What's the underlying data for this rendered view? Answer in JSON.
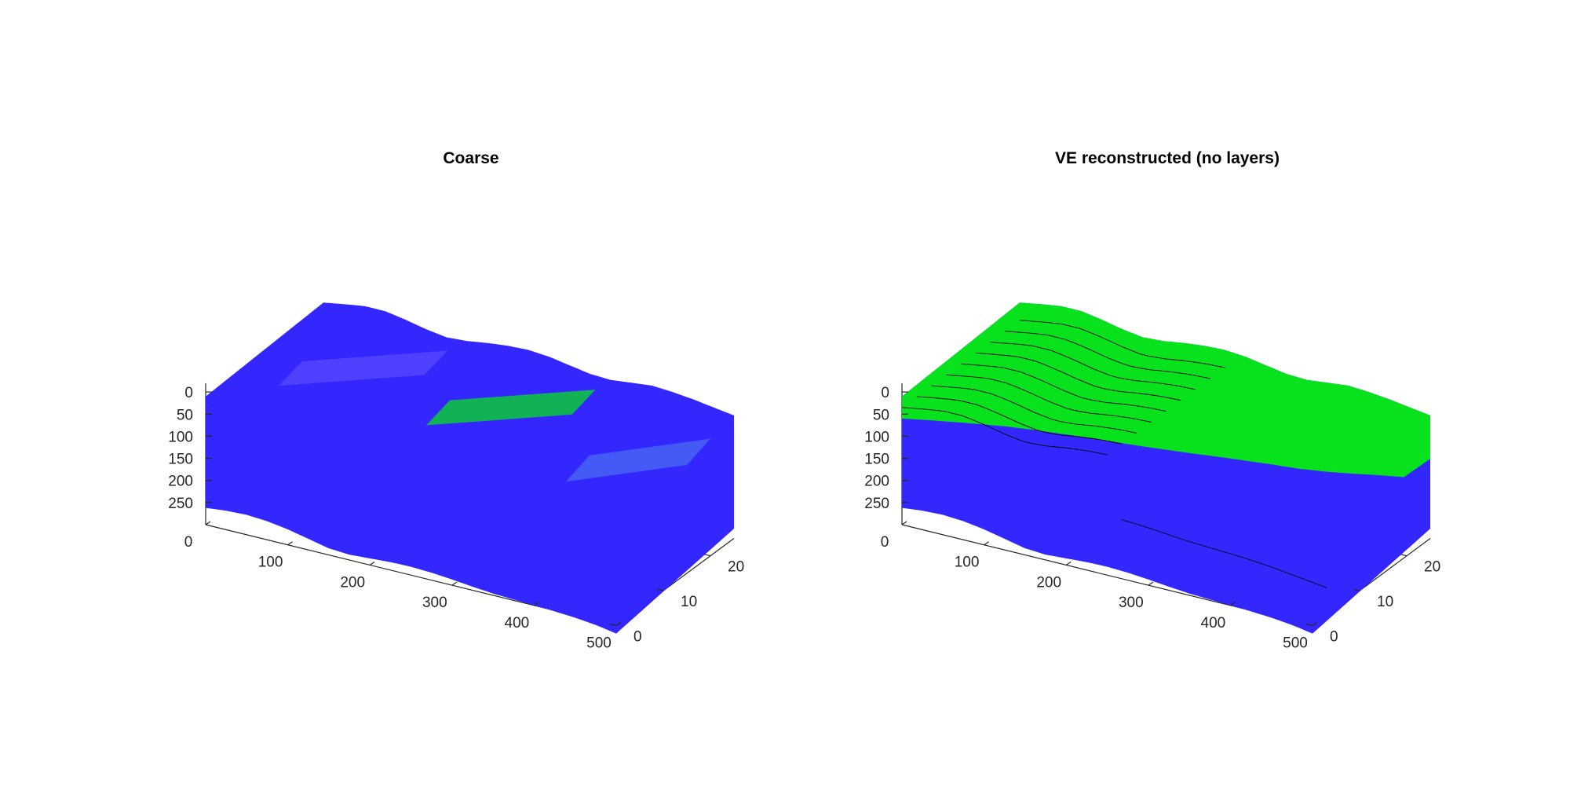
{
  "figure": {
    "background": "#ffffff"
  },
  "colors": {
    "blue": "#3326ff",
    "green": "#07e21d",
    "mesh": "#000000",
    "axis": "#262626"
  },
  "chart_data": [
    {
      "type": "3d-surface",
      "title": "Coarse",
      "xlabel": "",
      "ylabel": "",
      "zlabel": "",
      "xlim": [
        0,
        500
      ],
      "ylim": [
        0,
        25
      ],
      "zlim": [
        0,
        290
      ],
      "z_direction": "reverse",
      "x_ticks": [
        0,
        100,
        200,
        300,
        400,
        500
      ],
      "y_ticks": [
        0,
        10,
        20
      ],
      "z_ticks": [
        0,
        50,
        100,
        150,
        200,
        250
      ],
      "top_surface_depth": [
        -5,
        -13,
        -20,
        -20,
        -12,
        -2,
        5,
        2,
        -5,
        -10,
        -12,
        -8,
        0,
        8,
        10,
        5,
        0,
        3,
        8,
        15,
        22
      ],
      "bottom_surface_depth": [
        262,
        257,
        255,
        258,
        265,
        275,
        285,
        288,
        285,
        282,
        281,
        283,
        287,
        292,
        296,
        298,
        300,
        302,
        305,
        310,
        318
      ],
      "saturation_patches": [
        {
          "name": "left-crest",
          "x_range": [
            60,
            180
          ],
          "depth_range": [
            -18,
            -2
          ],
          "color": "#5a48ff"
        },
        {
          "name": "middle-crest",
          "x_range": [
            240,
            360
          ],
          "depth_range": [
            -12,
            5
          ],
          "color": "#07e21d"
        },
        {
          "name": "right-ridge",
          "x_range": [
            410,
            500
          ],
          "depth_range": [
            35,
            55
          ],
          "color": "#4a6cf0"
        }
      ]
    },
    {
      "type": "3d-surface",
      "title": "VE reconstructed (no layers)",
      "xlabel": "",
      "ylabel": "",
      "zlabel": "",
      "xlim": [
        0,
        500
      ],
      "ylim": [
        0,
        25
      ],
      "zlim": [
        0,
        290
      ],
      "z_direction": "reverse",
      "x_ticks": [
        0,
        100,
        200,
        300,
        400,
        500
      ],
      "y_ticks": [
        0,
        10,
        20
      ],
      "z_ticks": [
        0,
        50,
        100,
        150,
        200,
        250
      ],
      "top_surface_depth": [
        -5,
        -13,
        -20,
        -20,
        -12,
        -2,
        5,
        2,
        -5,
        -10,
        -12,
        -8,
        0,
        8,
        10,
        5,
        0,
        3,
        8,
        15,
        22
      ],
      "co2_interface_depth": [
        60,
        62,
        65,
        68,
        72,
        78,
        85,
        92,
        100,
        108,
        115,
        122,
        128,
        135,
        142,
        150,
        155,
        158,
        160,
        163,
        120
      ],
      "bottom_surface_depth": [
        262,
        257,
        255,
        258,
        265,
        275,
        285,
        288,
        285,
        282,
        281,
        283,
        287,
        292,
        296,
        298,
        300,
        302,
        305,
        310,
        318
      ],
      "well_grid_depth": [
        198,
        200,
        203,
        207,
        210,
        212,
        214,
        216,
        219,
        223,
        228,
        233,
        238
      ]
    }
  ]
}
